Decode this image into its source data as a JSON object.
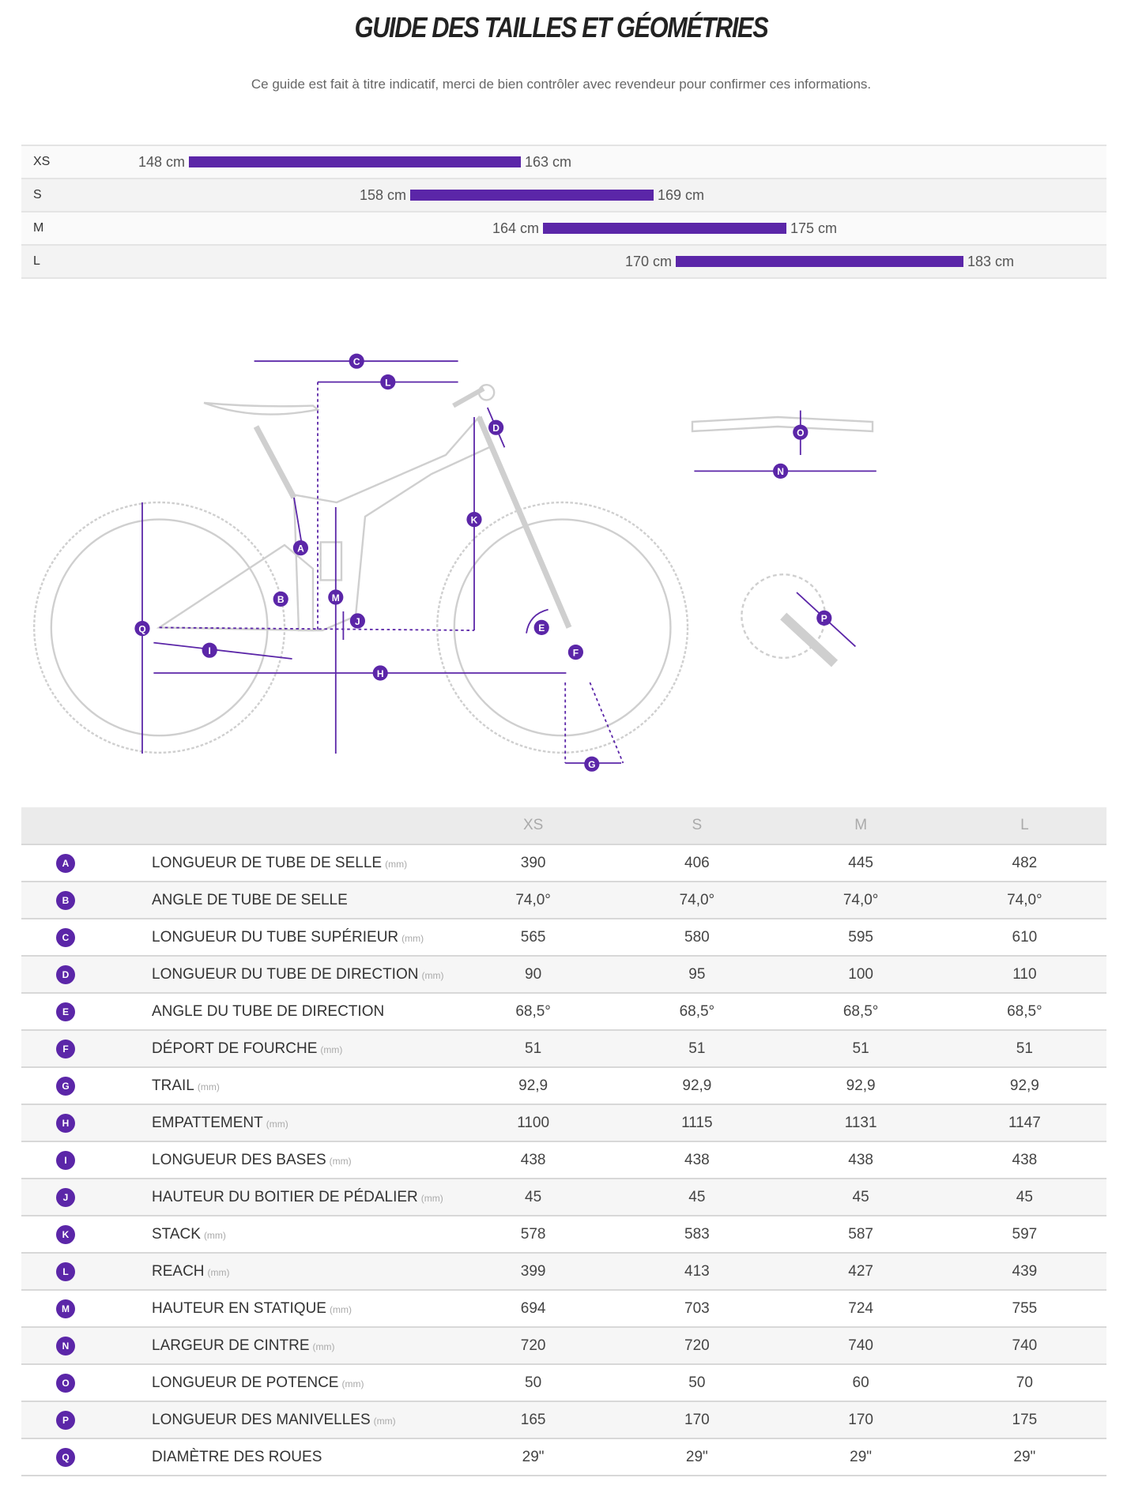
{
  "title": "GUIDE DES TAILLES ET GÉOMÉTRIES",
  "subtitle": "Ce guide est fait à titre indicatif, merci de bien contrôler avec revendeur pour confirmer ces informations.",
  "accent_color": "#5b26a8",
  "size_ranges": [
    {
      "size": "XS",
      "min": 148,
      "max": 163,
      "min_label": "148 cm",
      "max_label": "163 cm"
    },
    {
      "size": "S",
      "min": 158,
      "max": 169,
      "min_label": "158 cm",
      "max_label": "169 cm"
    },
    {
      "size": "M",
      "min": 164,
      "max": 175,
      "min_label": "164 cm",
      "max_label": "175 cm"
    },
    {
      "size": "L",
      "min": 170,
      "max": 183,
      "min_label": "170 cm",
      "max_label": "183 cm"
    }
  ],
  "diagram_letters": [
    "A",
    "B",
    "C",
    "D",
    "E",
    "F",
    "G",
    "H",
    "I",
    "J",
    "K",
    "L",
    "M",
    "N",
    "O",
    "P",
    "Q"
  ],
  "table": {
    "columns": [
      "XS",
      "S",
      "M",
      "L"
    ],
    "rows": [
      {
        "letter": "A",
        "label": "LONGUEUR DE TUBE DE SELLE",
        "unit": "(mm)",
        "values": [
          "390",
          "406",
          "445",
          "482"
        ]
      },
      {
        "letter": "B",
        "label": "ANGLE DE TUBE DE SELLE",
        "unit": "",
        "values": [
          "74,0°",
          "74,0°",
          "74,0°",
          "74,0°"
        ]
      },
      {
        "letter": "C",
        "label": "LONGUEUR DU TUBE SUPÉRIEUR",
        "unit": "(mm)",
        "values": [
          "565",
          "580",
          "595",
          "610"
        ]
      },
      {
        "letter": "D",
        "label": "LONGUEUR DU TUBE DE DIRECTION",
        "unit": "(mm)",
        "values": [
          "90",
          "95",
          "100",
          "110"
        ]
      },
      {
        "letter": "E",
        "label": "ANGLE DU TUBE DE DIRECTION",
        "unit": "",
        "values": [
          "68,5°",
          "68,5°",
          "68,5°",
          "68,5°"
        ]
      },
      {
        "letter": "F",
        "label": "DÉPORT DE FOURCHE",
        "unit": "(mm)",
        "values": [
          "51",
          "51",
          "51",
          "51"
        ]
      },
      {
        "letter": "G",
        "label": "TRAIL",
        "unit": "(mm)",
        "values": [
          "92,9",
          "92,9",
          "92,9",
          "92,9"
        ]
      },
      {
        "letter": "H",
        "label": "EMPATTEMENT",
        "unit": "(mm)",
        "values": [
          "1100",
          "1115",
          "1131",
          "1147"
        ]
      },
      {
        "letter": "I",
        "label": "LONGUEUR DES BASES",
        "unit": "(mm)",
        "values": [
          "438",
          "438",
          "438",
          "438"
        ]
      },
      {
        "letter": "J",
        "label": "HAUTEUR DU BOITIER DE PÉDALIER",
        "unit": "(mm)",
        "values": [
          "45",
          "45",
          "45",
          "45"
        ]
      },
      {
        "letter": "K",
        "label": "STACK",
        "unit": "(mm)",
        "values": [
          "578",
          "583",
          "587",
          "597"
        ]
      },
      {
        "letter": "L",
        "label": "REACH",
        "unit": "(mm)",
        "values": [
          "399",
          "413",
          "427",
          "439"
        ]
      },
      {
        "letter": "M",
        "label": "HAUTEUR EN STATIQUE",
        "unit": "(mm)",
        "values": [
          "694",
          "703",
          "724",
          "755"
        ]
      },
      {
        "letter": "N",
        "label": "LARGEUR DE CINTRE",
        "unit": "(mm)",
        "values": [
          "720",
          "720",
          "740",
          "740"
        ]
      },
      {
        "letter": "O",
        "label": "LONGUEUR DE POTENCE",
        "unit": "(mm)",
        "values": [
          "50",
          "50",
          "60",
          "70"
        ]
      },
      {
        "letter": "P",
        "label": "LONGUEUR DES MANIVELLES",
        "unit": "(mm)",
        "values": [
          "165",
          "170",
          "170",
          "175"
        ]
      },
      {
        "letter": "Q",
        "label": "DIAMÈTRE DES ROUES",
        "unit": "",
        "values": [
          "29\"",
          "29\"",
          "29\"",
          "29\""
        ]
      }
    ]
  }
}
